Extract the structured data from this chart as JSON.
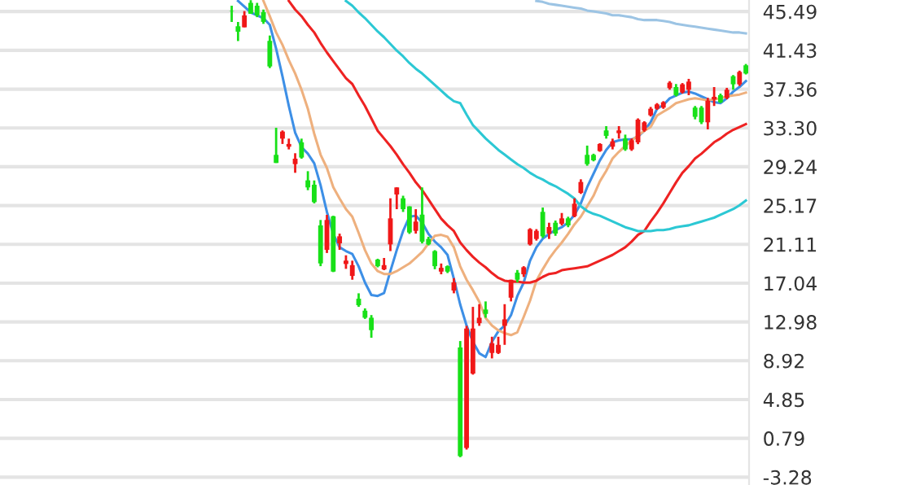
{
  "chart_data": {
    "type": "candlestick",
    "categories": [
      null,
      null,
      null,
      null,
      null,
      null,
      null,
      null,
      null,
      null,
      null,
      null,
      null,
      null,
      null,
      null,
      null,
      null,
      null,
      null,
      null,
      null,
      null,
      null,
      null,
      null,
      null,
      null,
      null,
      null,
      null,
      null,
      null,
      null,
      null,
      null,
      null,
      null,
      null,
      null,
      null,
      null,
      null,
      null,
      null,
      null,
      null,
      null,
      null,
      null,
      null,
      null,
      null,
      null,
      null,
      null,
      null,
      null,
      null,
      null,
      null,
      null,
      null,
      null,
      null,
      null,
      null,
      null,
      null,
      null,
      null,
      null,
      null,
      null,
      null,
      null,
      null,
      null,
      null,
      null,
      null,
      null,
      null,
      null,
      null,
      null,
      null,
      null,
      null,
      null,
      null,
      null,
      null,
      null,
      null,
      null,
      null,
      null,
      null,
      null,
      null,
      null,
      null,
      null,
      null,
      null,
      null,
      null,
      null,
      null,
      null,
      null,
      null,
      null,
      null,
      null,
      null,
      null
    ],
    "ohlc": [
      null,
      null,
      null,
      null,
      null,
      null,
      null,
      null,
      null,
      null,
      null,
      null,
      null,
      null,
      null,
      null,
      null,
      null,
      null,
      null,
      null,
      null,
      null,
      null,
      null,
      null,
      null,
      null,
      null,
      null,
      null,
      null,
      null,
      null,
      null,
      null,
      [
        45.54,
        46.1,
        44.4,
        45.5
      ],
      [
        43.95,
        44.4,
        42.4,
        43.38
      ],
      [
        43.84,
        45.54,
        43.84,
        45.09
      ],
      [
        46.4,
        46.68,
        45.26,
        45.26
      ],
      [
        46.1,
        46.4,
        44.9,
        45.09
      ],
      [
        45.43,
        45.7,
        44.2,
        44.41
      ],
      [
        42.42,
        42.98,
        39.57,
        39.74
      ],
      [
        30.48,
        33.32,
        29.63,
        29.63
      ],
      [
        32.18,
        33.04,
        31.62,
        32.92
      ],
      [
        31.33,
        32.18,
        31.05,
        31.62
      ],
      [
        29.51,
        30.65,
        28.6,
        30.08
      ],
      [
        31.79,
        32.18,
        30.08,
        30.2
      ],
      [
        27.81,
        28.77,
        26.78,
        27.07
      ],
      [
        27.35,
        27.8,
        25.4,
        25.53
      ],
      [
        23.09,
        23.66,
        18.82,
        19.11
      ],
      [
        20.53,
        24.2,
        20.2,
        23.66
      ],
      [
        24.05,
        24.1,
        18.2,
        18.25
      ],
      [
        21.21,
        22.23,
        20.53,
        21.95
      ],
      [
        19.05,
        19.96,
        18.54,
        19.4
      ],
      [
        17.8,
        19.4,
        17.4,
        18.93
      ],
      [
        15.41,
        15.98,
        14.56,
        14.73
      ],
      [
        14.16,
        14.4,
        13.3,
        13.42
      ],
      [
        13.42,
        13.7,
        11.32,
        12.12
      ],
      [
        19.51,
        19.6,
        18.7,
        18.82
      ],
      [
        18.48,
        19.68,
        18.4,
        18.93
      ],
      [
        21.1,
        25.93,
        20.4,
        23.83
      ],
      [
        26.33,
        27.07,
        24.79,
        27.07
      ],
      [
        25.93,
        26.2,
        24.5,
        24.79
      ],
      [
        25.08,
        25.1,
        22.2,
        22.35
      ],
      [
        22.52,
        24.79,
        22.23,
        23.49
      ],
      [
        24.22,
        27.07,
        21.2,
        21.38
      ],
      [
        21.67,
        21.9,
        21.0,
        21.1
      ],
      [
        20.4,
        20.5,
        18.5,
        18.82
      ],
      [
        18.25,
        19.1,
        17.97,
        18.65
      ],
      [
        18.82,
        18.9,
        18.1,
        18.25
      ],
      [
        16.27,
        17.57,
        15.98,
        17.12
      ],
      [
        10.3,
        10.98,
        -1.19,
        -1.07
      ],
      [
        -0.22,
        12.57,
        -0.39,
        12.29
      ],
      [
        7.57,
        14.56,
        7.46,
        12.29
      ],
      [
        12.85,
        14.84,
        12.57,
        13.42
      ],
      [
        14.28,
        15.13,
        13.42,
        13.82
      ],
      [
        9.73,
        11.43,
        9.16,
        10.75
      ],
      [
        9.73,
        11.43,
        9.62,
        10.58
      ],
      [
        12.57,
        14.84,
        10.58,
        13.25
      ],
      [
        15.52,
        17.4,
        15.13,
        17.4
      ],
      [
        18.14,
        18.42,
        17.12,
        17.4
      ],
      [
        17.97,
        18.82,
        17.69,
        18.71
      ],
      [
        21.1,
        22.8,
        20.98,
        22.69
      ],
      [
        21.67,
        22.7,
        21.5,
        22.52
      ],
      [
        24.51,
        24.96,
        21.78,
        21.95
      ],
      [
        22.23,
        23.37,
        21.67,
        22.92
      ],
      [
        23.37,
        23.6,
        22.0,
        22.23
      ],
      [
        23.26,
        24.39,
        23.09,
        23.83
      ],
      [
        23.83,
        24.0,
        22.9,
        23.09
      ],
      [
        24.05,
        25.93,
        23.94,
        25.36
      ],
      [
        26.5,
        27.92,
        26.39,
        27.64
      ],
      [
        30.48,
        31.45,
        29.34,
        29.51
      ],
      [
        30.48,
        30.6,
        29.8,
        29.91
      ],
      [
        30.88,
        31.7,
        30.8,
        31.62
      ],
      [
        33.04,
        33.49,
        32.18,
        32.47
      ],
      [
        31.33,
        32.18,
        31.05,
        31.9
      ],
      [
        32.75,
        33.49,
        32.18,
        33.04
      ],
      [
        32.18,
        32.6,
        30.9,
        31.05
      ],
      [
        31.05,
        32.2,
        30.9,
        32.01
      ],
      [
        31.79,
        34.3,
        31.6,
        34.17
      ],
      [
        33.04,
        34.0,
        32.9,
        33.89
      ],
      [
        34.63,
        35.5,
        34.5,
        35.31
      ],
      [
        35.31,
        35.9,
        35.2,
        35.77
      ],
      [
        35.43,
        36.1,
        35.3,
        35.99
      ],
      [
        37.47,
        38.2,
        37.3,
        38.04
      ],
      [
        37.58,
        37.9,
        36.6,
        36.73
      ],
      [
        37.02,
        38.0,
        36.9,
        37.87
      ],
      [
        37.3,
        38.44,
        36.73,
        38.15
      ],
      [
        35.43,
        35.6,
        34.2,
        34.46
      ],
      [
        35.43,
        35.6,
        33.7,
        33.89
      ],
      [
        33.89,
        36.45,
        33.15,
        36.16
      ],
      [
        36.28,
        37.58,
        35.6,
        36.56
      ],
      [
        36.73,
        36.9,
        35.9,
        35.99
      ],
      [
        36.45,
        37.5,
        36.3,
        37.3
      ],
      [
        38.72,
        38.84,
        37.3,
        37.87
      ],
      [
        37.87,
        39.3,
        37.7,
        39.17
      ],
      [
        39.86,
        40.0,
        38.9,
        39.0
      ]
    ],
    "colors": [
      null,
      null,
      null,
      null,
      null,
      null,
      null,
      null,
      null,
      null,
      null,
      null,
      null,
      null,
      null,
      null,
      null,
      null,
      null,
      null,
      null,
      null,
      null,
      null,
      null,
      null,
      null,
      null,
      null,
      null,
      null,
      null,
      null,
      null,
      null,
      null,
      "#18e018",
      "#18e018",
      "#f01818",
      "#18e018",
      "#18e018",
      "#18e018",
      "#18e018",
      "#18e018",
      "#f01818",
      "#f01818",
      "#f01818",
      "#18e018",
      "#18e018",
      "#18e018",
      "#18e018",
      "#f01818",
      "#18e018",
      "#f01818",
      "#f01818",
      "#f01818",
      "#18e018",
      "#18e018",
      "#18e018",
      "#18e018",
      "#f01818",
      "#f01818",
      "#f01818",
      "#18e018",
      "#18e018",
      "#f01818",
      "#18e018",
      "#18e018",
      "#18e018",
      "#f01818",
      "#18e018",
      "#f01818",
      "#18e018",
      "#f01818",
      "#f01818",
      "#f01818",
      "#18e018",
      "#f01818",
      "#f01818",
      "#f01818",
      "#f01818",
      "#18e018",
      "#f01818",
      "#f01818",
      "#f01818",
      "#18e018",
      "#f01818",
      "#18e018",
      "#f01818",
      "#18e018",
      "#f01818",
      "#f01818",
      "#18e018",
      "#18e018",
      "#f01818",
      "#18e018",
      "#f01818",
      "#f01818",
      "#18e018",
      "#f01818",
      "#f01818",
      "#f01818",
      "#f01818",
      "#f01818",
      "#f01818",
      "#f01818",
      "#18e018",
      "#f01818",
      "#f01818",
      "#18e018",
      "#18e018",
      "#f01818",
      "#f01818",
      "#18e018",
      "#f01818",
      "#18e018",
      "#f01818",
      "#18e018"
    ],
    "series": [
      {
        "type": "line",
        "color": "#3d8fe6",
        "values": [
          null,
          null,
          null,
          null,
          null,
          null,
          null,
          null,
          null,
          null,
          null,
          null,
          null,
          null,
          null,
          null,
          null,
          null,
          null,
          null,
          null,
          null,
          null,
          null,
          null,
          null,
          null,
          null,
          null,
          null,
          null,
          null,
          null,
          null,
          null,
          null,
          null,
          46.6,
          46.0,
          45.4,
          45.1,
          44.8,
          44.1,
          41.6,
          38.7,
          35.6,
          32.8,
          31.3,
          30.6,
          29.6,
          27.3,
          24.5,
          22.2,
          20.8,
          20.4,
          20.1,
          18.8,
          17.1,
          15.8,
          15.7,
          16.0,
          18.3,
          20.5,
          22.5,
          24.0,
          24.1,
          23.4,
          22.2,
          21.4,
          20.8,
          20.0,
          17.5,
          14.8,
          12.6,
          10.9,
          9.7,
          9.3,
          10.9,
          12.0,
          12.6,
          13.7,
          15.7,
          17.1,
          19.4,
          20.8,
          21.7,
          22.2,
          22.6,
          22.9,
          23.4,
          24.2,
          25.4,
          27.1,
          28.5,
          29.9,
          31.0,
          31.8,
          32.0,
          32.1,
          32.1,
          32.4,
          33.0,
          33.9,
          35.3,
          35.7,
          36.4,
          36.7,
          37.0,
          37.1,
          36.9,
          36.6,
          36.3,
          36.0,
          35.9,
          36.4,
          37.1,
          37.6,
          38.2
        ]
      },
      {
        "type": "line",
        "color": "#eeb07e",
        "values": [
          null,
          null,
          null,
          null,
          null,
          null,
          null,
          null,
          null,
          null,
          null,
          null,
          null,
          null,
          null,
          null,
          null,
          null,
          null,
          null,
          null,
          null,
          null,
          null,
          null,
          null,
          null,
          null,
          null,
          null,
          null,
          null,
          null,
          null,
          null,
          null,
          null,
          null,
          null,
          null,
          null,
          46.6,
          45.0,
          43.3,
          42.0,
          40.4,
          39.0,
          37.3,
          35.3,
          32.7,
          30.5,
          29.1,
          27.1,
          25.9,
          24.8,
          24.0,
          22.3,
          20.5,
          19.1,
          18.3,
          18.0,
          18.0,
          18.3,
          18.7,
          19.1,
          19.7,
          20.3,
          21.2,
          22.0,
          22.1,
          21.9,
          20.8,
          18.8,
          17.4,
          16.3,
          15.1,
          13.4,
          12.6,
          12.1,
          11.8,
          11.6,
          11.9,
          13.5,
          15.2,
          17.3,
          18.5,
          19.6,
          20.5,
          21.3,
          22.2,
          23.2,
          24.0,
          25.1,
          26.2,
          27.7,
          28.8,
          30.1,
          30.8,
          31.4,
          32.0,
          32.5,
          33.0,
          33.4,
          34.6,
          35.0,
          35.4,
          35.9,
          36.1,
          36.3,
          36.4,
          36.3,
          36.2,
          36.3,
          36.4,
          36.6,
          36.7,
          36.8,
          37.0
        ]
      },
      {
        "type": "line",
        "color": "#ee2222",
        "values": [
          null,
          null,
          null,
          null,
          null,
          null,
          null,
          null,
          null,
          null,
          null,
          null,
          null,
          null,
          null,
          null,
          null,
          null,
          null,
          null,
          null,
          null,
          null,
          null,
          null,
          null,
          null,
          null,
          null,
          null,
          null,
          null,
          null,
          null,
          null,
          null,
          null,
          null,
          null,
          null,
          null,
          null,
          null,
          null,
          null,
          46.6,
          45.7,
          45.0,
          44.1,
          43.3,
          42.2,
          41.2,
          40.3,
          39.4,
          38.5,
          37.9,
          36.7,
          35.6,
          34.3,
          33.0,
          32.2,
          31.4,
          30.5,
          29.5,
          28.6,
          27.6,
          26.8,
          25.8,
          24.8,
          23.8,
          23.1,
          22.5,
          21.3,
          20.5,
          19.8,
          19.2,
          18.7,
          18.1,
          17.6,
          17.3,
          17.2,
          17.2,
          17.1,
          17.1,
          17.3,
          17.7,
          18.0,
          18.1,
          18.4,
          18.5,
          18.6,
          18.7,
          18.8,
          19.1,
          19.4,
          19.7,
          20.0,
          20.4,
          20.8,
          21.4,
          22.1,
          22.5,
          23.5,
          24.4,
          25.4,
          26.5,
          27.6,
          28.6,
          29.3,
          30.1,
          30.6,
          31.2,
          31.8,
          32.2,
          32.7,
          33.1,
          33.4,
          33.7
        ]
      },
      {
        "type": "line",
        "color": "#2cc8d4",
        "values": [
          null,
          null,
          null,
          null,
          null,
          null,
          null,
          null,
          null,
          null,
          null,
          null,
          null,
          null,
          null,
          null,
          null,
          null,
          null,
          null,
          null,
          null,
          null,
          null,
          null,
          null,
          null,
          null,
          null,
          null,
          null,
          null,
          null,
          null,
          null,
          null,
          null,
          null,
          null,
          null,
          null,
          null,
          null,
          null,
          null,
          null,
          null,
          null,
          null,
          null,
          null,
          null,
          null,
          null,
          46.6,
          46.1,
          45.4,
          44.8,
          44.1,
          43.4,
          42.8,
          42.1,
          41.4,
          40.8,
          40.1,
          39.5,
          39.0,
          38.4,
          37.8,
          37.2,
          36.6,
          36.1,
          35.9,
          34.7,
          33.6,
          32.9,
          32.2,
          31.6,
          31.0,
          30.5,
          30.0,
          29.5,
          29.1,
          28.6,
          28.2,
          27.9,
          27.5,
          27.2,
          26.8,
          26.4,
          25.9,
          25.1,
          24.6,
          24.3,
          24.1,
          23.8,
          23.5,
          23.2,
          22.9,
          22.7,
          22.5,
          22.5,
          22.5,
          22.6,
          22.6,
          22.7,
          22.9,
          23.0,
          23.1,
          23.3,
          23.5,
          23.7,
          23.9,
          24.2,
          24.5,
          24.8,
          25.2,
          25.7
        ]
      },
      {
        "type": "line",
        "color": "#9cc4e4",
        "values": [
          null,
          null,
          null,
          null,
          null,
          null,
          null,
          null,
          null,
          null,
          null,
          null,
          null,
          null,
          null,
          null,
          null,
          null,
          null,
          null,
          null,
          null,
          null,
          null,
          null,
          null,
          null,
          null,
          null,
          null,
          null,
          null,
          null,
          null,
          null,
          null,
          null,
          null,
          null,
          null,
          null,
          null,
          null,
          null,
          null,
          null,
          null,
          null,
          null,
          null,
          null,
          null,
          null,
          null,
          null,
          null,
          null,
          null,
          null,
          null,
          null,
          null,
          null,
          null,
          null,
          null,
          null,
          null,
          null,
          null,
          null,
          null,
          null,
          null,
          null,
          null,
          null,
          null,
          null,
          null,
          null,
          null,
          null,
          null,
          46.6,
          46.5,
          46.3,
          46.2,
          46.1,
          46.0,
          45.9,
          45.8,
          45.6,
          45.5,
          45.4,
          45.3,
          45.1,
          45.1,
          45.0,
          44.9,
          44.7,
          44.6,
          44.6,
          44.6,
          44.5,
          44.4,
          44.2,
          44.1,
          44.0,
          43.9,
          43.8,
          43.7,
          43.6,
          43.5,
          43.4,
          43.3,
          43.3,
          43.2
        ]
      }
    ],
    "ylim": [
      -4.1,
      46.7
    ],
    "yticks": [
      45.49,
      41.43,
      37.36,
      {
        "value": 33.3,
        "label": "33.30"
      },
      29.24,
      25.17,
      21.11,
      17.04,
      12.98,
      8.92,
      4.85,
      0.79,
      -3.28
    ],
    "grid": "y",
    "tick_labels": "y"
  }
}
